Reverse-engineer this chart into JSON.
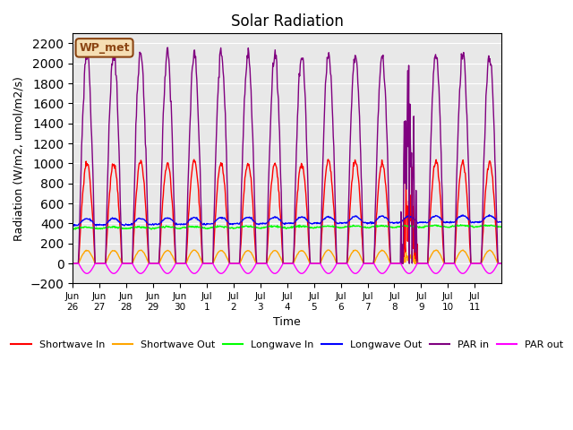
{
  "title": "Solar Radiation",
  "ylabel": "Radiation (W/m2, umol/m2/s)",
  "xlabel": "Time",
  "ylim": [
    -200,
    2300
  ],
  "yticks": [
    -200,
    0,
    200,
    400,
    600,
    800,
    1000,
    1200,
    1400,
    1600,
    1800,
    2000,
    2200
  ],
  "annotation_text": "WP_met",
  "annotation_color": "#8B4513",
  "annotation_bg": "#F5DEB3",
  "bg_color": "#E8E8E8",
  "n_days": 16,
  "tick_labels": [
    "Jun\n26",
    "Jun\n27",
    "Jun\n28",
    "Jun\n29",
    "Jun\n30",
    "Jul\n1",
    "Jul\n2",
    "Jul\n3",
    "Jul\n4",
    "Jul\n5",
    "Jul\n6",
    "Jul\n7",
    "Jul\n8",
    "Jul\n9",
    "Jul\n10",
    "Jul\n11"
  ],
  "sw_peaks": [
    1000,
    1000,
    1020,
    1000,
    1030,
    1000,
    1000,
    1000,
    1000,
    1030,
    1030,
    1010,
    600,
    1010,
    1000,
    1000
  ],
  "par_peaks": [
    2100,
    2100,
    2080,
    2080,
    2080,
    2100,
    2080,
    2060,
    2080,
    2080,
    2080,
    2060,
    1200,
    2100,
    2080,
    2080
  ],
  "sw_out_scale": 0.13,
  "sunrise": 5.5,
  "sunset": 20.5,
  "pts_per_day": 48
}
